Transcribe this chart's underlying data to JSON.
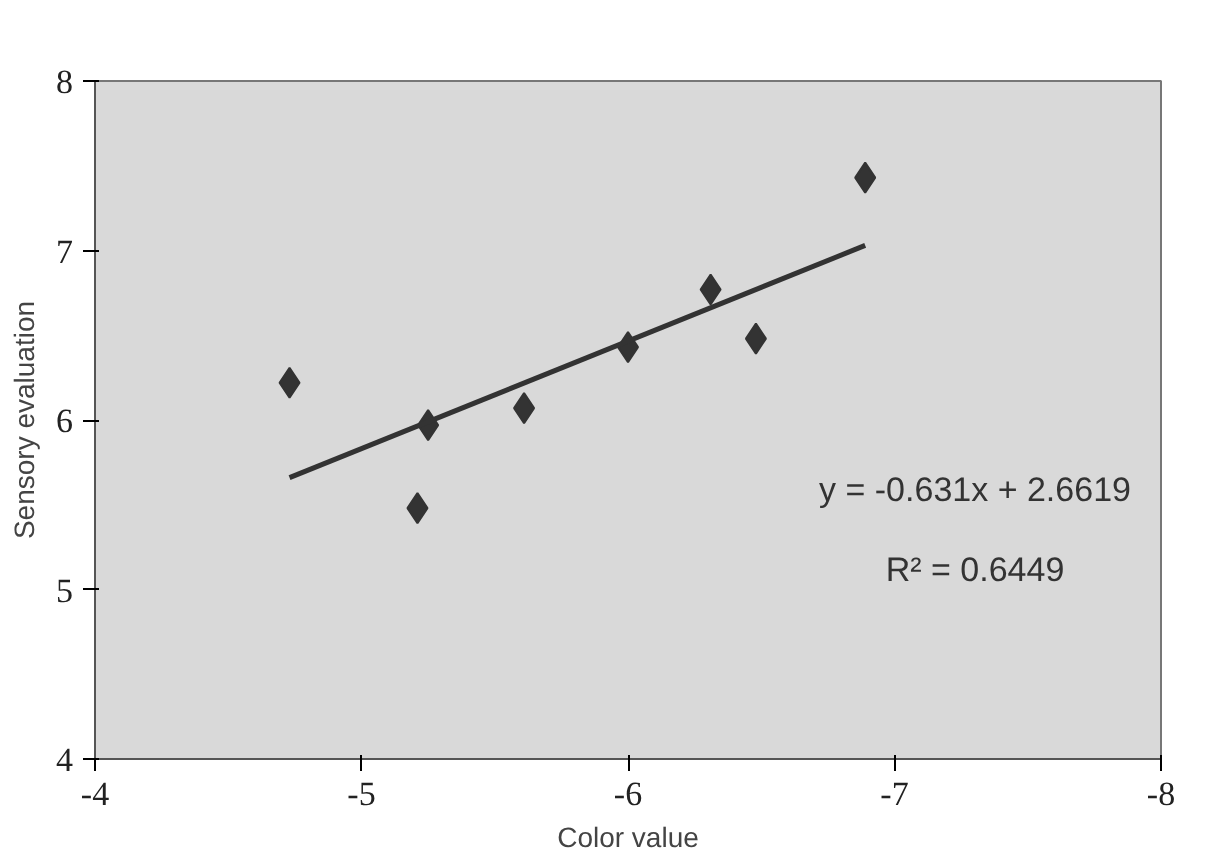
{
  "chart_data": {
    "type": "scatter",
    "xlabel": "Color value",
    "ylabel": "Sensory evaluation",
    "xlim": [
      -4,
      -8
    ],
    "ylim": [
      4,
      8
    ],
    "xticks": [
      -4,
      -5,
      -6,
      -7,
      -8
    ],
    "yticks": [
      4,
      5,
      6,
      7,
      8
    ],
    "grid": false,
    "marker": "diamond",
    "series": [
      {
        "color": "#333333",
        "x": [
          -4.73,
          -5.21,
          -5.25,
          -5.61,
          -6.0,
          -6.31,
          -6.48,
          -6.89
        ],
        "values": [
          6.22,
          5.48,
          5.97,
          6.07,
          6.43,
          6.77,
          6.48,
          7.43
        ]
      },
      {
        "type": "line",
        "color": "#333333",
        "line_style": "solid",
        "marker": "none",
        "x": [
          -4.73,
          -6.89
        ],
        "values": [
          5.66,
          7.03
        ]
      }
    ],
    "annotations": [
      "y = -0.631x + 2.6619",
      "R² = 0.6449"
    ]
  }
}
